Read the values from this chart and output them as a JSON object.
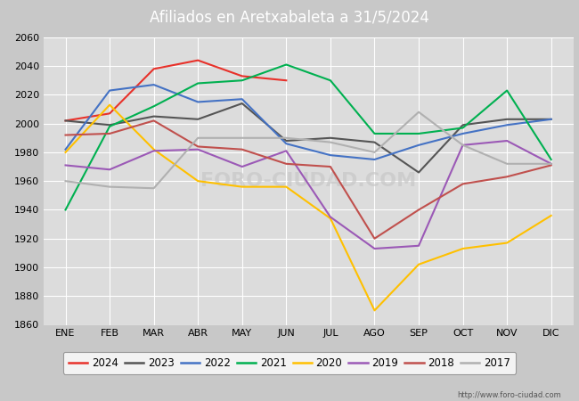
{
  "title": "Afiliados en Aretxabaleta a 31/5/2024",
  "header_bg": "#5b8fd4",
  "months": [
    "ENE",
    "FEB",
    "MAR",
    "ABR",
    "MAY",
    "JUN",
    "JUL",
    "AGO",
    "SEP",
    "OCT",
    "NOV",
    "DIC"
  ],
  "ylim": [
    1860,
    2060
  ],
  "yticks": [
    1860,
    1880,
    1900,
    1920,
    1940,
    1960,
    1980,
    2000,
    2020,
    2040,
    2060
  ],
  "series": {
    "2024": {
      "color": "#e8312a",
      "data": [
        2002,
        2007,
        2038,
        2044,
        2033,
        2030,
        null,
        null,
        null,
        null,
        null,
        null
      ]
    },
    "2023": {
      "color": "#555555",
      "data": [
        2002,
        1999,
        2005,
        2003,
        2014,
        1988,
        1990,
        1987,
        1966,
        1999,
        2003,
        2003
      ]
    },
    "2022": {
      "color": "#4472c4",
      "data": [
        1982,
        2023,
        2027,
        2015,
        2017,
        1986,
        1978,
        1975,
        1985,
        1993,
        1999,
        2003
      ]
    },
    "2021": {
      "color": "#00b050",
      "data": [
        1940,
        1998,
        2012,
        2028,
        2030,
        2041,
        2030,
        1993,
        1993,
        1997,
        2023,
        1975
      ]
    },
    "2020": {
      "color": "#ffc000",
      "data": [
        1980,
        2013,
        1982,
        1960,
        1956,
        1956,
        1934,
        1870,
        1902,
        1913,
        1917,
        1936
      ]
    },
    "2019": {
      "color": "#9b59b6",
      "data": [
        1971,
        1968,
        1981,
        1982,
        1970,
        1981,
        1935,
        1913,
        1915,
        1985,
        1988,
        1972
      ]
    },
    "2018": {
      "color": "#c0504d",
      "data": [
        1992,
        1993,
        2002,
        1984,
        1982,
        1972,
        1970,
        1920,
        1940,
        1958,
        1963,
        1971
      ]
    },
    "2017": {
      "color": "#b0b0b0",
      "data": [
        1960,
        1956,
        1955,
        1990,
        1990,
        1990,
        1987,
        1980,
        2008,
        1985,
        1972,
        1972
      ]
    }
  },
  "legend_order": [
    "2024",
    "2023",
    "2022",
    "2021",
    "2020",
    "2019",
    "2018",
    "2017"
  ],
  "fig_bg": "#c8c8c8",
  "plot_bg": "#dcdcdc",
  "grid_color": "#ffffff",
  "watermark": "http://www.foro-ciudad.com"
}
